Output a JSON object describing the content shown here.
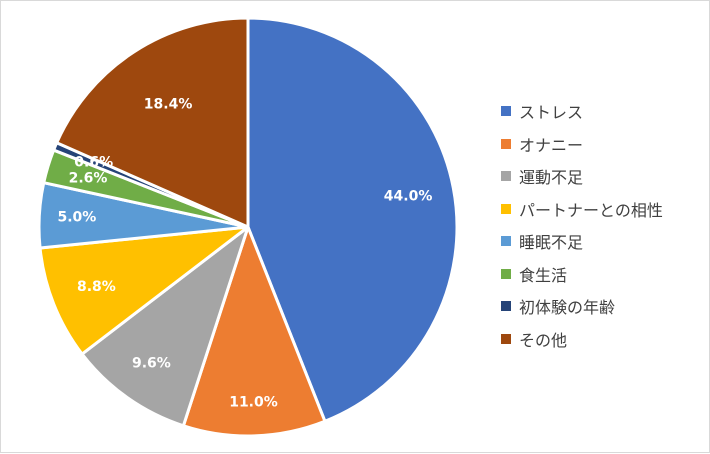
{
  "chart_data": {
    "type": "pie",
    "title": "",
    "categories": [
      "ストレス",
      "オナニー",
      "運動不足",
      "パートナーとの相性",
      "睡眠不足",
      "食生活",
      "初体験の年齢",
      "その他"
    ],
    "values": [
      44.0,
      11.0,
      9.6,
      8.8,
      5.0,
      2.6,
      0.6,
      18.4
    ],
    "labels": [
      "44.0%",
      "11.0%",
      "9.6%",
      "8.8%",
      "5.0%",
      "2.6%",
      "0.6%",
      "18.4%"
    ],
    "colors": [
      "#4472C4",
      "#ED7D31",
      "#A5A5A5",
      "#FFC000",
      "#5B9BD5",
      "#70AD47",
      "#264478",
      "#9E480E"
    ],
    "legend_position": "right",
    "start_angle": "12 o'clock, clockwise"
  }
}
